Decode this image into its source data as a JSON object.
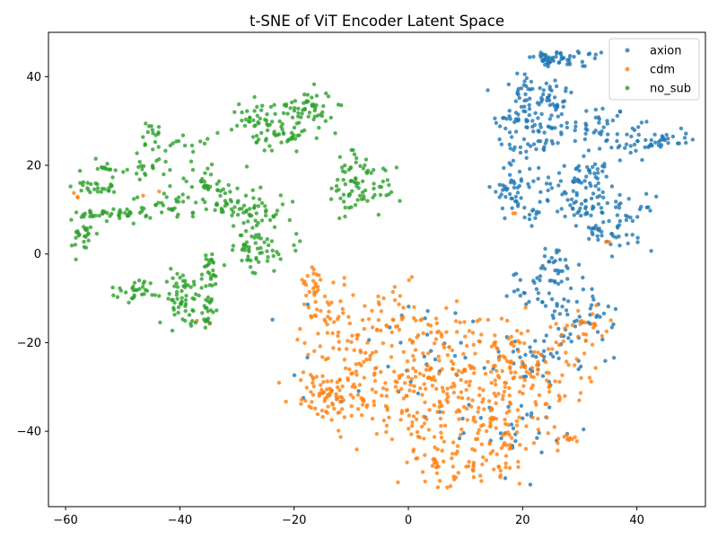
{
  "chart_data": {
    "type": "scatter",
    "title": "t-SNE of ViT Encoder Latent Space",
    "xlabel": "",
    "ylabel": "",
    "xlim": [
      -63,
      52
    ],
    "ylim": [
      -57,
      50
    ],
    "xticks": [
      -60,
      -40,
      -20,
      0,
      20,
      40
    ],
    "yticks": [
      -40,
      -20,
      0,
      20,
      40
    ],
    "grid": false,
    "legend_position": "top-right",
    "marker": "dot",
    "series": [
      {
        "name": "axion",
        "color": "#1f77b4",
        "clusters": [
          {
            "cx": 24,
            "cy": 44,
            "sx": 1.5,
            "sy": 1,
            "n": 30
          },
          {
            "cx": 30,
            "cy": 44,
            "sx": 2.5,
            "sy": 1,
            "n": 25
          },
          {
            "cx": 20,
            "cy": 38,
            "sx": 1.2,
            "sy": 2,
            "n": 15
          },
          {
            "cx": 24,
            "cy": 36,
            "sx": 2.5,
            "sy": 2,
            "n": 35
          },
          {
            "cx": 19,
            "cy": 30,
            "sx": 2.5,
            "sy": 3,
            "n": 40
          },
          {
            "cx": 25,
            "cy": 29,
            "sx": 2,
            "sy": 3,
            "n": 35
          },
          {
            "cx": 33,
            "cy": 29,
            "sx": 2.5,
            "sy": 2.5,
            "n": 30
          },
          {
            "cx": 39,
            "cy": 25,
            "sx": 3,
            "sy": 2,
            "n": 40
          },
          {
            "cx": 45,
            "cy": 26,
            "sx": 2,
            "sy": 1,
            "n": 20
          },
          {
            "cx": 22,
            "cy": 24,
            "sx": 2,
            "sy": 1.5,
            "n": 15
          },
          {
            "cx": 18,
            "cy": 15,
            "sx": 1.5,
            "sy": 3,
            "n": 40
          },
          {
            "cx": 25,
            "cy": 14,
            "sx": 2.5,
            "sy": 3,
            "n": 30
          },
          {
            "cx": 31,
            "cy": 17,
            "sx": 2.5,
            "sy": 2,
            "n": 40
          },
          {
            "cx": 31,
            "cy": 11,
            "sx": 2,
            "sy": 2,
            "n": 30
          },
          {
            "cx": 38,
            "cy": 7,
            "sx": 2.5,
            "sy": 3,
            "n": 45
          },
          {
            "cx": 33,
            "cy": 5,
            "sx": 1.5,
            "sy": 2,
            "n": 15
          },
          {
            "cx": 22,
            "cy": 8,
            "sx": 1.5,
            "sy": 1,
            "n": 8
          },
          {
            "cx": 26,
            "cy": -3,
            "sx": 2,
            "sy": 3,
            "n": 30
          },
          {
            "cx": 23,
            "cy": -8,
            "sx": 2.5,
            "sy": 2,
            "n": 25
          },
          {
            "cx": 30,
            "cy": -14,
            "sx": 3,
            "sy": 3,
            "n": 40
          },
          {
            "cx": 24,
            "cy": -23,
            "sx": 4,
            "sy": 3,
            "n": 35
          },
          {
            "cx": 19,
            "cy": -39,
            "sx": 4,
            "sy": 3,
            "n": 30
          },
          {
            "cx": 5,
            "cy": -25,
            "sx": 12,
            "sy": 9,
            "n": 50
          }
        ]
      },
      {
        "name": "cdm",
        "color": "#ff7f0e",
        "clusters": [
          {
            "cx": -17,
            "cy": -7,
            "sx": 1.5,
            "sy": 2.5,
            "n": 20
          },
          {
            "cx": -15,
            "cy": -13,
            "sx": 2.5,
            "sy": 3,
            "n": 30
          },
          {
            "cx": -5,
            "cy": -15,
            "sx": 6,
            "sy": 4,
            "n": 50
          },
          {
            "cx": -15,
            "cy": -32,
            "sx": 3,
            "sy": 3,
            "n": 50
          },
          {
            "cx": -9,
            "cy": -28,
            "sx": 4,
            "sy": 6,
            "n": 80
          },
          {
            "cx": 2,
            "cy": -30,
            "sx": 6,
            "sy": 9,
            "n": 150
          },
          {
            "cx": 12,
            "cy": -28,
            "sx": 6,
            "sy": 8,
            "n": 120
          },
          {
            "cx": 18,
            "cy": -25,
            "sx": 4,
            "sy": 6,
            "n": 60
          },
          {
            "cx": 26,
            "cy": -28,
            "sx": 4,
            "sy": 5,
            "n": 50
          },
          {
            "cx": 8,
            "cy": -48,
            "sx": 5,
            "sy": 3,
            "n": 50
          },
          {
            "cx": 16,
            "cy": -42,
            "sx": 3,
            "sy": 4,
            "n": 40
          },
          {
            "cx": 27,
            "cy": -42,
            "sx": 2,
            "sy": 1,
            "n": 12
          },
          {
            "cx": 31,
            "cy": -17,
            "sx": 2.5,
            "sy": 3,
            "n": 25
          },
          {
            "cx": -58,
            "cy": 13,
            "sx": 0.5,
            "sy": 0.5,
            "n": 3
          },
          {
            "cx": -45,
            "cy": 13,
            "sx": 1,
            "sy": 1,
            "n": 2
          },
          {
            "cx": -35,
            "cy": -15,
            "sx": 1,
            "sy": 0.5,
            "n": 2
          },
          {
            "cx": 19,
            "cy": 9,
            "sx": 0.5,
            "sy": 0.5,
            "n": 2
          },
          {
            "cx": 35,
            "cy": 3,
            "sx": 0.5,
            "sy": 0.5,
            "n": 2
          }
        ]
      },
      {
        "name": "no_sub",
        "color": "#2ca02c",
        "clusters": [
          {
            "cx": -18,
            "cy": 33,
            "sx": 2.5,
            "sy": 2,
            "n": 50
          },
          {
            "cx": -26,
            "cy": 31,
            "sx": 2.5,
            "sy": 2,
            "n": 40
          },
          {
            "cx": -22,
            "cy": 26,
            "sx": 3,
            "sy": 2,
            "n": 40
          },
          {
            "cx": -9,
            "cy": 20,
            "sx": 2,
            "sy": 2.5,
            "n": 25
          },
          {
            "cx": -7,
            "cy": 15,
            "sx": 3,
            "sy": 2.5,
            "n": 40
          },
          {
            "cx": -11,
            "cy": 12,
            "sx": 1.5,
            "sy": 2,
            "n": 15
          },
          {
            "cx": -45,
            "cy": 27,
            "sx": 1,
            "sy": 1.5,
            "n": 15
          },
          {
            "cx": -39,
            "cy": 25,
            "sx": 2,
            "sy": 1,
            "n": 12
          },
          {
            "cx": -46,
            "cy": 20,
            "sx": 2,
            "sy": 1.5,
            "n": 20
          },
          {
            "cx": -53,
            "cy": 19,
            "sx": 1.5,
            "sy": 1,
            "n": 15
          },
          {
            "cx": -35,
            "cy": 17,
            "sx": 2,
            "sy": 2.5,
            "n": 30
          },
          {
            "cx": -55,
            "cy": 15,
            "sx": 2,
            "sy": 0.7,
            "n": 25
          },
          {
            "cx": -42,
            "cy": 11,
            "sx": 3,
            "sy": 1.5,
            "n": 35
          },
          {
            "cx": -31,
            "cy": 11,
            "sx": 2.5,
            "sy": 2,
            "n": 35
          },
          {
            "cx": -52,
            "cy": 9,
            "sx": 3,
            "sy": 0.8,
            "n": 40
          },
          {
            "cx": -57,
            "cy": 4,
            "sx": 1,
            "sy": 2,
            "n": 25
          },
          {
            "cx": -26,
            "cy": 6,
            "sx": 2,
            "sy": 5,
            "n": 60
          },
          {
            "cx": -27,
            "cy": 0,
            "sx": 2,
            "sy": 1.5,
            "n": 25
          },
          {
            "cx": -47,
            "cy": -8,
            "sx": 2.5,
            "sy": 1.2,
            "n": 30
          },
          {
            "cx": -39,
            "cy": -7,
            "sx": 2,
            "sy": 2,
            "n": 30
          },
          {
            "cx": -40,
            "cy": -12,
            "sx": 2,
            "sy": 2,
            "n": 25
          },
          {
            "cx": -35,
            "cy": -4,
            "sx": 1,
            "sy": 2.5,
            "n": 25
          },
          {
            "cx": -35,
            "cy": -12,
            "sx": 1,
            "sy": 2,
            "n": 15
          },
          {
            "cx": -37,
            "cy": -15,
            "sx": 1.5,
            "sy": 0.7,
            "n": 12
          },
          {
            "cx": -19,
            "cy": 3,
            "sx": 0.5,
            "sy": 1,
            "n": 4
          }
        ]
      }
    ]
  }
}
